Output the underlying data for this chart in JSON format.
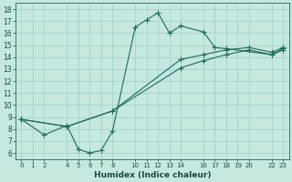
{
  "xlabel": "Humidex (Indice chaleur)",
  "ylabel": "",
  "background_color": "#c5e8e0",
  "grid_color": "#9ecfc5",
  "line_color": "#1e6b5a",
  "xlim": [
    -0.5,
    23.5
  ],
  "ylim": [
    5.5,
    18.5
  ],
  "xticks": [
    0,
    1,
    2,
    4,
    5,
    6,
    7,
    8,
    10,
    11,
    12,
    13,
    14,
    16,
    17,
    18,
    19,
    20,
    22,
    23
  ],
  "yticks": [
    6,
    7,
    8,
    9,
    10,
    11,
    12,
    13,
    14,
    15,
    16,
    17,
    18
  ],
  "line1_x": [
    0,
    2,
    4,
    5,
    6,
    7,
    8,
    10,
    11,
    12,
    13,
    14,
    16,
    17,
    18,
    22,
    23
  ],
  "line1_y": [
    8.8,
    7.5,
    8.3,
    6.3,
    6.0,
    6.2,
    7.8,
    16.5,
    17.1,
    17.7,
    16.0,
    16.6,
    16.1,
    14.8,
    14.7,
    14.2,
    14.7
  ],
  "line2_x": [
    0,
    4,
    8,
    14,
    16,
    18,
    20,
    22,
    23
  ],
  "line2_y": [
    8.8,
    8.2,
    9.5,
    13.8,
    14.2,
    14.6,
    14.8,
    14.4,
    14.8
  ],
  "line3_x": [
    0,
    4,
    8,
    14,
    16,
    18,
    20,
    22,
    23
  ],
  "line3_y": [
    8.8,
    8.2,
    9.5,
    13.1,
    13.7,
    14.2,
    14.6,
    14.2,
    14.6
  ]
}
